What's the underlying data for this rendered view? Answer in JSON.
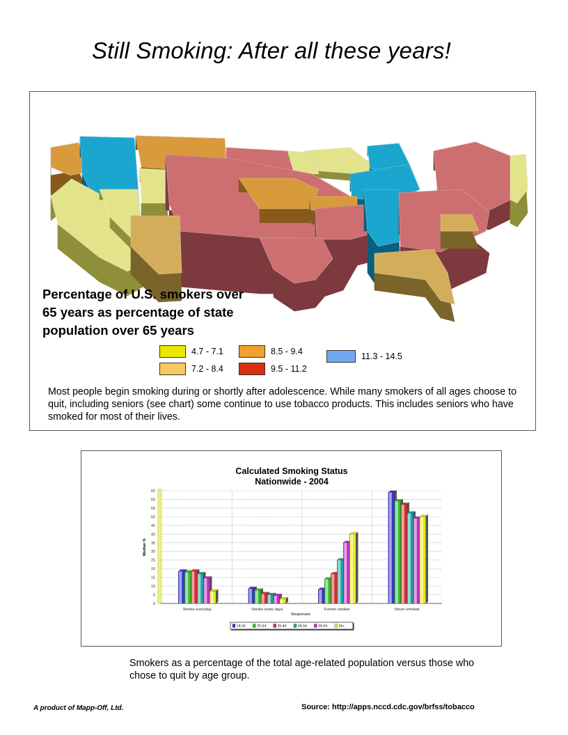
{
  "title": "Still Smoking:  After all these years!",
  "map": {
    "caption": "Percentage of U.S. smokers over 65 years as percentage of state population over 65 years",
    "legend": [
      {
        "label": "4.7 - 7.1",
        "color": "#e8e800"
      },
      {
        "label": "8.5 - 9.4",
        "color": "#f0a030"
      },
      {
        "label": "11.3 - 14.5",
        "color": "#70a8f0"
      },
      {
        "label": "7.2 - 8.4",
        "color": "#f8c860"
      },
      {
        "label": "9.5 - 11.2",
        "color": "#d83010"
      }
    ],
    "region_colors": {
      "yellow": "#e3e38c",
      "yellow_side": "#8f8f3a",
      "tan": "#d4ad5a",
      "tan_side": "#7a6429",
      "orange": "#d99a3c",
      "orange_side": "#86591d",
      "rose": "#cd6f70",
      "rose_side": "#7d3a3e",
      "blue": "#1aa6cf",
      "blue_side": "#0b5f7e"
    },
    "note": "Most people begin smoking during or shortly after adolescence. While many smokers of all ages choose to quit, including seniors (see chart) some continue to use tobacco products.  This includes seniors who have smoked for most of their lives."
  },
  "chart_data": {
    "type": "bar",
    "title": "Calculated Smoking Status",
    "subtitle": "Nationwide - 2004",
    "xlabel": "Responses",
    "ylabel": "Median %",
    "ylim": [
      0,
      65
    ],
    "yticks": [
      0,
      5,
      10,
      15,
      20,
      25,
      30,
      35,
      40,
      45,
      50,
      55,
      60,
      65
    ],
    "grid": true,
    "legend_position": "bottom",
    "categories": [
      "Smoke everyday",
      "Smoke some days",
      "Former smoker",
      "Never smoked"
    ],
    "series": [
      {
        "name": "18-24",
        "color": "#3838d0",
        "values": [
          18.5,
          8.5,
          8,
          64
        ]
      },
      {
        "name": "25-34",
        "color": "#30c030",
        "values": [
          18,
          7.5,
          14,
          59
        ]
      },
      {
        "name": "35-44",
        "color": "#d83030",
        "values": [
          18.5,
          5.5,
          17,
          57
        ]
      },
      {
        "name": "45-54",
        "color": "#20a0a0",
        "values": [
          17,
          5,
          25,
          52
        ]
      },
      {
        "name": "55-64",
        "color": "#c030c0",
        "values": [
          14.5,
          4.5,
          35,
          49
        ]
      },
      {
        "name": "65+",
        "color": "#e8e820",
        "values": [
          7,
          2.5,
          40,
          50
        ]
      }
    ]
  },
  "chart_caption": "Smokers as a percentage of the total age-related population versus those who chose to quit by age group.",
  "footer": {
    "credit": "A product of Mapp-Off, Ltd.",
    "source": "Source: http://apps.nccd.cdc.gov/brfss/tobacco"
  }
}
